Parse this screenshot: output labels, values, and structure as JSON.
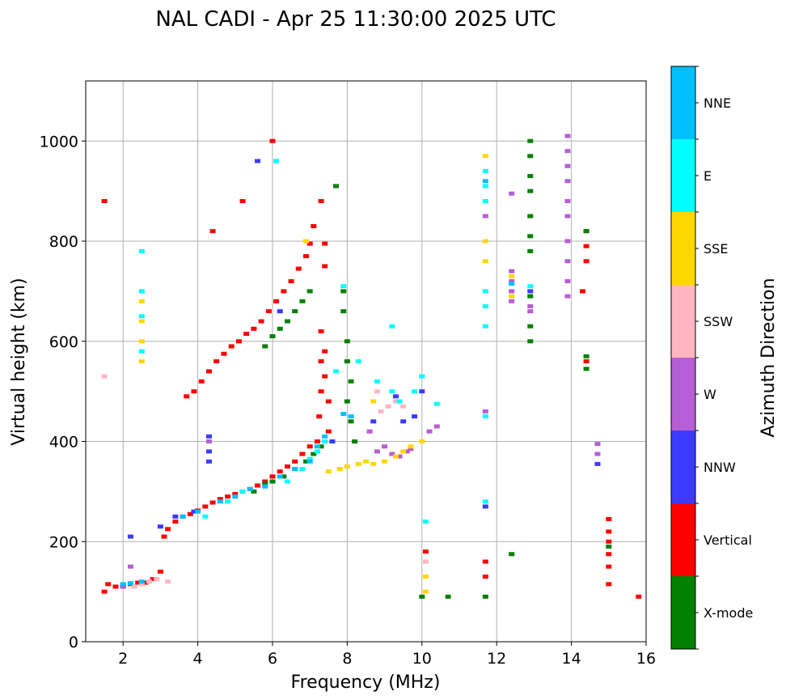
{
  "chart_data": {
    "type": "scatter",
    "title": "NAL CADI - Apr 25 11:30:00 2025 UTC",
    "xlabel": "Frequency (MHz)",
    "ylabel": "Virtual height (km)",
    "xlim": [
      1,
      16
    ],
    "ylim": [
      0,
      1120
    ],
    "xticks": [
      2,
      4,
      6,
      8,
      10,
      12,
      14,
      16
    ],
    "yticks": [
      0,
      200,
      400,
      600,
      800,
      1000
    ],
    "grid": true,
    "colorbar": {
      "title": "Azimuth Direction",
      "categories": [
        {
          "name": "X-mode",
          "color": "#008000"
        },
        {
          "name": "Vertical",
          "color": "#ff0000"
        },
        {
          "name": "NNW",
          "color": "#3b3bff"
        },
        {
          "name": "W",
          "color": "#b65ed6"
        },
        {
          "name": "SSW",
          "color": "#ffb6c1"
        },
        {
          "name": "SSE",
          "color": "#ffd700"
        },
        {
          "name": "E",
          "color": "#00ffff"
        },
        {
          "name": "NNE",
          "color": "#00bfff"
        }
      ]
    },
    "traces": [
      {
        "name": "Vertical",
        "points": [
          [
            1.5,
            100
          ],
          [
            1.6,
            115
          ],
          [
            1.8,
            110
          ],
          [
            2.0,
            112
          ],
          [
            2.2,
            115
          ],
          [
            2.4,
            118
          ],
          [
            2.6,
            118
          ],
          [
            2.8,
            125
          ],
          [
            3.0,
            140
          ],
          [
            3.1,
            210
          ],
          [
            3.2,
            225
          ],
          [
            3.4,
            240
          ],
          [
            3.6,
            250
          ],
          [
            3.8,
            255
          ],
          [
            4.0,
            262
          ],
          [
            4.2,
            270
          ],
          [
            4.4,
            278
          ],
          [
            4.6,
            285
          ],
          [
            4.8,
            290
          ],
          [
            5.0,
            295
          ],
          [
            5.2,
            300
          ],
          [
            5.4,
            305
          ],
          [
            5.6,
            312
          ],
          [
            5.8,
            320
          ],
          [
            6.0,
            330
          ],
          [
            6.2,
            340
          ],
          [
            6.4,
            350
          ],
          [
            6.6,
            360
          ],
          [
            6.8,
            375
          ],
          [
            7.0,
            390
          ],
          [
            7.2,
            400
          ],
          [
            7.25,
            450
          ],
          [
            7.3,
            500
          ],
          [
            7.3,
            560
          ],
          [
            7.3,
            620
          ],
          [
            7.4,
            580
          ],
          [
            7.4,
            530
          ],
          [
            7.5,
            480
          ],
          [
            7.5,
            420
          ],
          [
            3.7,
            490
          ],
          [
            3.9,
            500
          ],
          [
            4.1,
            520
          ],
          [
            4.3,
            540
          ],
          [
            4.5,
            560
          ],
          [
            4.7,
            575
          ],
          [
            4.9,
            590
          ],
          [
            5.1,
            600
          ],
          [
            5.3,
            615
          ],
          [
            5.5,
            625
          ],
          [
            5.7,
            640
          ],
          [
            5.9,
            660
          ],
          [
            6.1,
            680
          ],
          [
            6.3,
            700
          ],
          [
            6.5,
            720
          ],
          [
            6.7,
            745
          ],
          [
            6.9,
            770
          ],
          [
            7.0,
            795
          ],
          [
            7.1,
            830
          ],
          [
            7.3,
            880
          ],
          [
            7.4,
            795
          ],
          [
            7.4,
            750
          ],
          [
            10.1,
            180
          ],
          [
            11.7,
            160
          ],
          [
            11.7,
            130
          ],
          [
            14.4,
            820
          ],
          [
            14.4,
            790
          ],
          [
            14.4,
            760
          ],
          [
            14.3,
            700
          ],
          [
            14.4,
            560
          ],
          [
            15.0,
            245
          ],
          [
            15.0,
            220
          ],
          [
            15.0,
            200
          ],
          [
            15.0,
            175
          ],
          [
            15.0,
            150
          ],
          [
            15.0,
            115
          ],
          [
            15.8,
            90
          ],
          [
            1.5,
            880
          ],
          [
            4.4,
            820
          ],
          [
            5.2,
            880
          ],
          [
            6.0,
            1000
          ]
        ]
      },
      {
        "name": "X-mode",
        "points": [
          [
            5.8,
            590
          ],
          [
            6.0,
            610
          ],
          [
            6.2,
            625
          ],
          [
            6.4,
            640
          ],
          [
            6.6,
            660
          ],
          [
            6.8,
            680
          ],
          [
            7.0,
            700
          ],
          [
            5.5,
            300
          ],
          [
            5.8,
            315
          ],
          [
            6.0,
            320
          ],
          [
            6.3,
            330
          ],
          [
            6.6,
            345
          ],
          [
            6.9,
            360
          ],
          [
            7.1,
            375
          ],
          [
            7.3,
            390
          ],
          [
            7.6,
            400
          ],
          [
            7.9,
            700
          ],
          [
            7.9,
            660
          ],
          [
            8.0,
            600
          ],
          [
            8.0,
            560
          ],
          [
            8.1,
            520
          ],
          [
            8.0,
            480
          ],
          [
            8.1,
            440
          ],
          [
            8.2,
            400
          ],
          [
            7.7,
            910
          ],
          [
            12.9,
            1000
          ],
          [
            12.9,
            970
          ],
          [
            12.9,
            930
          ],
          [
            12.9,
            900
          ],
          [
            12.9,
            850
          ],
          [
            12.9,
            810
          ],
          [
            12.9,
            780
          ],
          [
            12.9,
            690
          ],
          [
            12.9,
            630
          ],
          [
            12.9,
            600
          ],
          [
            12.4,
            175
          ],
          [
            14.4,
            570
          ],
          [
            14.4,
            545
          ],
          [
            14.4,
            820
          ],
          [
            15.0,
            190
          ],
          [
            11.7,
            90
          ],
          [
            10.7,
            90
          ],
          [
            10.0,
            90
          ]
        ]
      },
      {
        "name": "NNW",
        "points": [
          [
            2.2,
            210
          ],
          [
            2.0,
            110
          ],
          [
            3.0,
            230
          ],
          [
            3.4,
            250
          ],
          [
            3.9,
            260
          ],
          [
            4.3,
            410
          ],
          [
            4.3,
            380
          ],
          [
            4.3,
            360
          ],
          [
            5.6,
            960
          ],
          [
            6.2,
            660
          ],
          [
            7.6,
            400
          ],
          [
            8.7,
            440
          ],
          [
            9.3,
            490
          ],
          [
            9.5,
            440
          ],
          [
            9.8,
            450
          ],
          [
            10.0,
            500
          ],
          [
            12.9,
            700
          ],
          [
            14.7,
            355
          ],
          [
            11.7,
            270
          ]
        ]
      },
      {
        "name": "W",
        "points": [
          [
            2.2,
            150
          ],
          [
            2.0,
            110
          ],
          [
            4.3,
            400
          ],
          [
            8.6,
            420
          ],
          [
            8.8,
            380
          ],
          [
            9.0,
            390
          ],
          [
            9.2,
            375
          ],
          [
            9.4,
            370
          ],
          [
            9.6,
            380
          ],
          [
            9.7,
            385
          ],
          [
            10.2,
            420
          ],
          [
            10.4,
            430
          ],
          [
            12.4,
            740
          ],
          [
            12.4,
            720
          ],
          [
            12.4,
            700
          ],
          [
            12.4,
            680
          ],
          [
            12.9,
            670
          ],
          [
            12.9,
            660
          ],
          [
            13.9,
            1010
          ],
          [
            13.9,
            980
          ],
          [
            13.9,
            950
          ],
          [
            13.9,
            920
          ],
          [
            13.9,
            880
          ],
          [
            13.9,
            850
          ],
          [
            13.9,
            800
          ],
          [
            13.9,
            760
          ],
          [
            13.9,
            720
          ],
          [
            13.9,
            690
          ],
          [
            14.7,
            395
          ],
          [
            14.7,
            375
          ],
          [
            12.4,
            895
          ],
          [
            11.7,
            850
          ],
          [
            11.7,
            460
          ]
        ]
      },
      {
        "name": "SSW",
        "points": [
          [
            2.3,
            110
          ],
          [
            2.5,
            115
          ],
          [
            2.7,
            120
          ],
          [
            2.9,
            125
          ],
          [
            3.2,
            120
          ],
          [
            8.9,
            460
          ],
          [
            9.1,
            470
          ],
          [
            9.3,
            480
          ],
          [
            9.5,
            470
          ],
          [
            8.8,
            500
          ],
          [
            10.1,
            160
          ],
          [
            1.5,
            530
          ]
        ]
      },
      {
        "name": "SSE",
        "points": [
          [
            2.5,
            600
          ],
          [
            2.5,
            640
          ],
          [
            2.5,
            680
          ],
          [
            2.5,
            560
          ],
          [
            7.5,
            340
          ],
          [
            7.8,
            345
          ],
          [
            8.0,
            350
          ],
          [
            8.3,
            355
          ],
          [
            8.5,
            360
          ],
          [
            8.7,
            355
          ],
          [
            9.0,
            360
          ],
          [
            9.3,
            370
          ],
          [
            9.5,
            380
          ],
          [
            9.7,
            390
          ],
          [
            10.0,
            400
          ],
          [
            6.9,
            800
          ],
          [
            8.7,
            480
          ],
          [
            12.4,
            730
          ],
          [
            12.4,
            690
          ],
          [
            11.7,
            800
          ],
          [
            11.7,
            760
          ],
          [
            11.7,
            970
          ],
          [
            10.1,
            130
          ],
          [
            10.1,
            100
          ]
        ]
      },
      {
        "name": "E",
        "points": [
          [
            2.5,
            780
          ],
          [
            2.5,
            700
          ],
          [
            2.5,
            650
          ],
          [
            2.5,
            580
          ],
          [
            4.2,
            250
          ],
          [
            4.8,
            280
          ],
          [
            5.2,
            300
          ],
          [
            6.4,
            320
          ],
          [
            6.8,
            345
          ],
          [
            7.0,
            365
          ],
          [
            7.2,
            380
          ],
          [
            7.4,
            400
          ],
          [
            7.9,
            710
          ],
          [
            7.7,
            540
          ],
          [
            8.3,
            560
          ],
          [
            8.8,
            520
          ],
          [
            9.2,
            500
          ],
          [
            9.4,
            480
          ],
          [
            9.8,
            500
          ],
          [
            10.0,
            530
          ],
          [
            10.4,
            475
          ],
          [
            9.2,
            630
          ],
          [
            11.7,
            940
          ],
          [
            11.7,
            910
          ],
          [
            11.7,
            880
          ],
          [
            11.7,
            700
          ],
          [
            11.7,
            670
          ],
          [
            11.7,
            630
          ],
          [
            11.7,
            450
          ],
          [
            11.7,
            280
          ],
          [
            10.1,
            240
          ],
          [
            12.9,
            710
          ],
          [
            6.1,
            960
          ]
        ]
      },
      {
        "name": "NNE",
        "points": [
          [
            2.0,
            115
          ],
          [
            2.2,
            117
          ],
          [
            2.5,
            120
          ],
          [
            3.6,
            250
          ],
          [
            4.0,
            260
          ],
          [
            4.6,
            280
          ],
          [
            5.0,
            290
          ],
          [
            5.4,
            305
          ],
          [
            5.8,
            310
          ],
          [
            6.2,
            330
          ],
          [
            6.6,
            345
          ],
          [
            7.0,
            360
          ],
          [
            7.2,
            390
          ],
          [
            7.4,
            410
          ],
          [
            7.9,
            455
          ],
          [
            8.1,
            450
          ],
          [
            11.7,
            920
          ],
          [
            12.4,
            715
          ]
        ]
      }
    ]
  }
}
